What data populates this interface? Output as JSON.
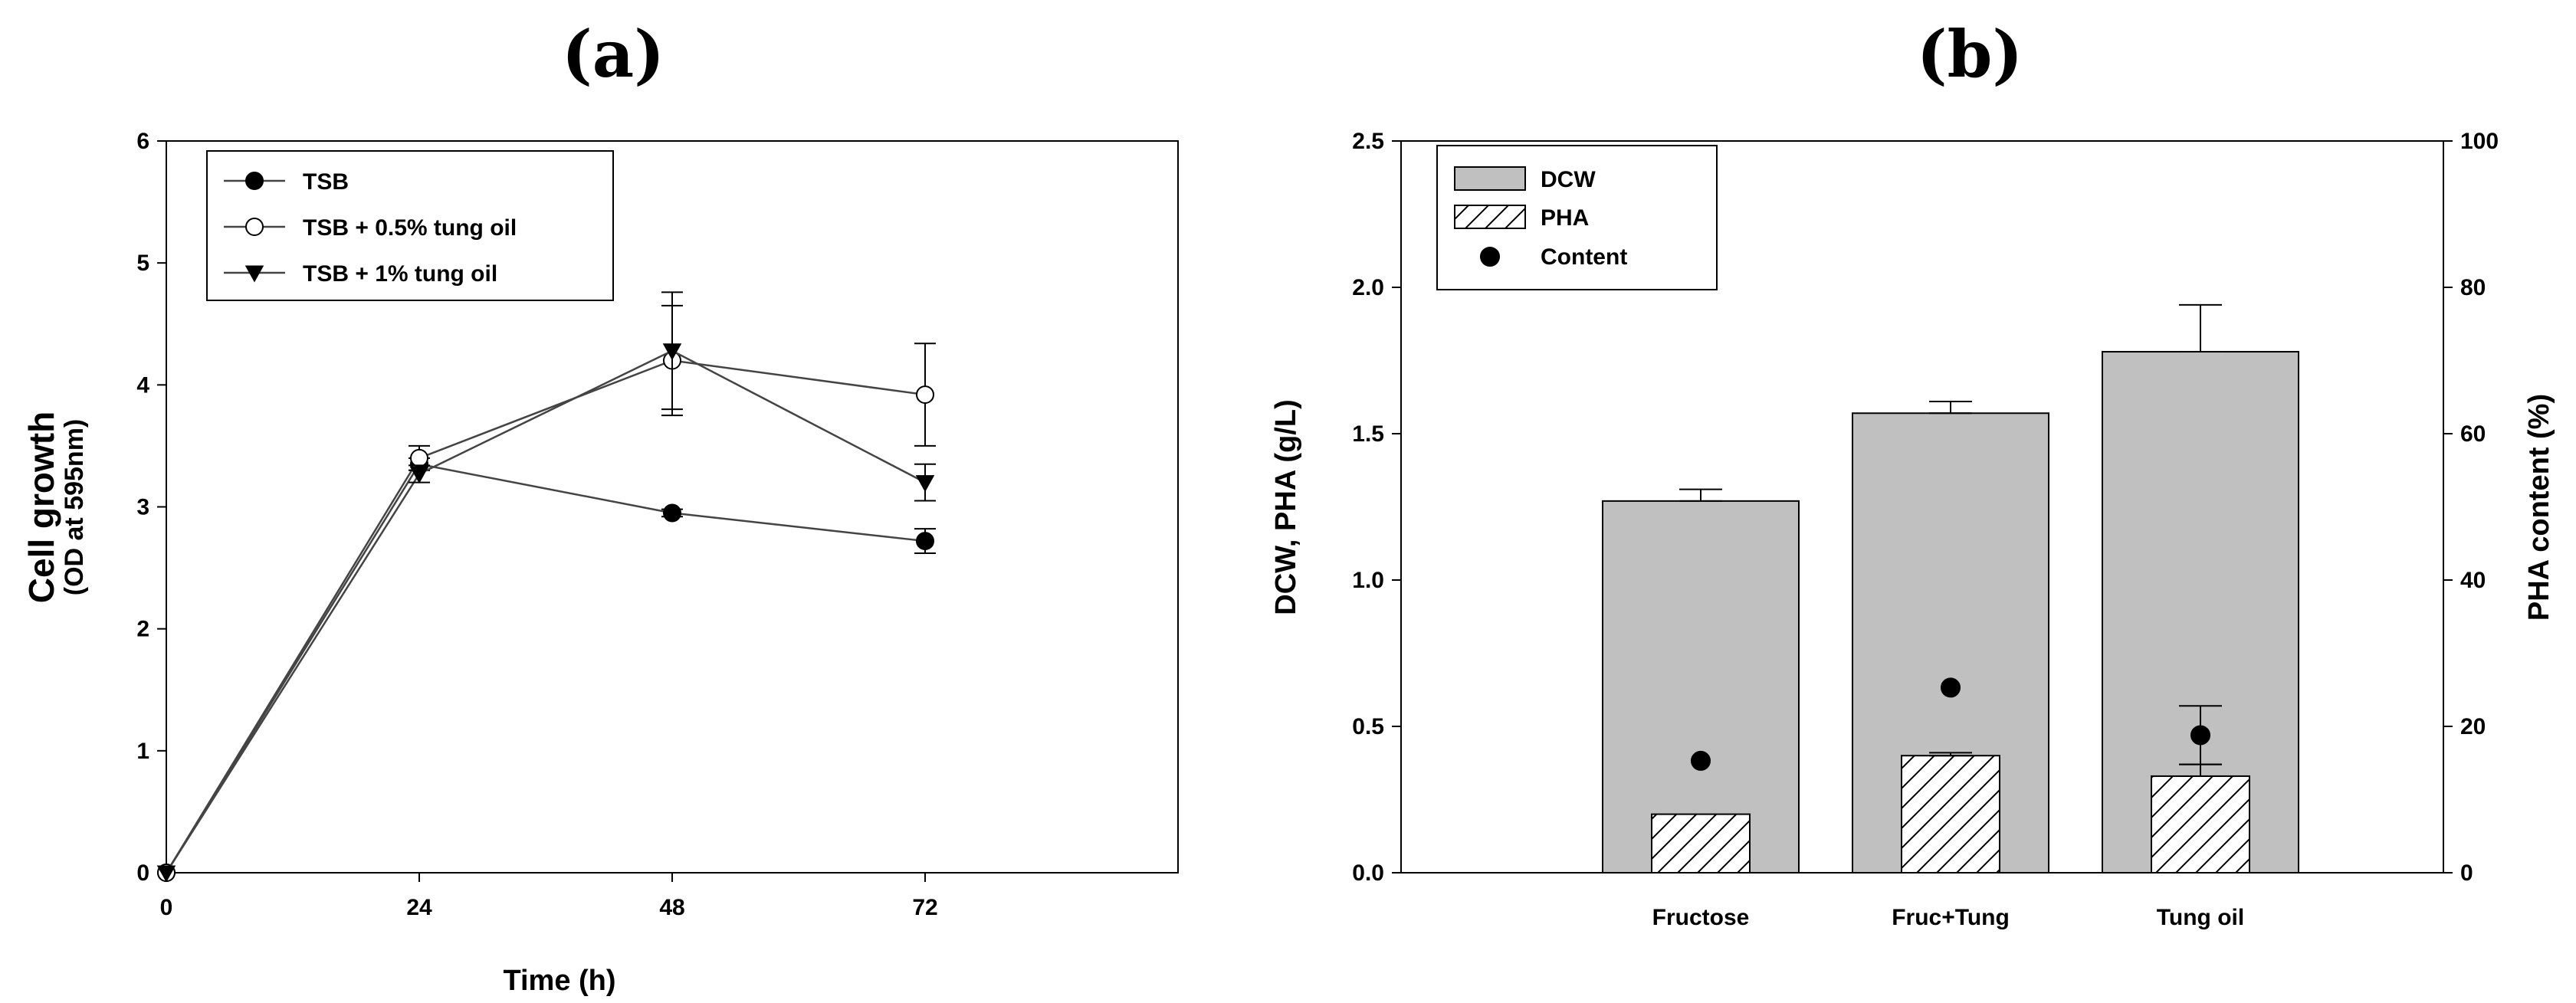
{
  "chart_data": [
    {
      "panel": "(a)",
      "type": "line",
      "xlabel": "Time (h)",
      "ylabel": "Cell growth",
      "ylabel_sub": "(OD at 595nm)",
      "x": [
        0,
        24,
        48,
        72
      ],
      "xticks": [
        "0",
        "24",
        "48",
        "72"
      ],
      "xlim": [
        0,
        96
      ],
      "ylim": [
        0,
        6
      ],
      "yticks": [
        "0",
        "1",
        "2",
        "3",
        "4",
        "5",
        "6"
      ],
      "grid": false,
      "legend": "top-left",
      "series": [
        {
          "name": "TSB",
          "marker": "filled-circle",
          "values": [
            0,
            3.35,
            2.95,
            2.72
          ],
          "errors": [
            0,
            0.05,
            0.03,
            0.1
          ]
        },
        {
          "name": "TSB + 0.5% tung oil",
          "marker": "open-circle",
          "values": [
            0,
            3.4,
            4.2,
            3.92
          ],
          "errors": [
            0,
            0.1,
            0.45,
            0.42
          ]
        },
        {
          "name": "TSB + 1% tung oil",
          "marker": "filled-triangle-down",
          "values": [
            0,
            3.27,
            4.28,
            3.2
          ],
          "errors": [
            0,
            0.07,
            0.48,
            0.15
          ]
        }
      ]
    },
    {
      "panel": "(b)",
      "type": "bar",
      "categories": [
        "Fructose",
        "Fruc+Tung",
        "Tung oil"
      ],
      "ylabel": "DCW, PHA (g/L)",
      "ylim": [
        0,
        2.5
      ],
      "yticks": [
        "0.0",
        "0.5",
        "1.0",
        "1.5",
        "2.0",
        "2.5"
      ],
      "y2label": "PHA content (%)",
      "y2lim": [
        0,
        100
      ],
      "y2ticks": [
        "0",
        "20",
        "40",
        "60",
        "80",
        "100"
      ],
      "grid": false,
      "legend": "top-left",
      "series": [
        {
          "name": "DCW",
          "style": "gray-bar",
          "axis": "left",
          "values": [
            1.27,
            1.57,
            1.78
          ],
          "errors": [
            0.04,
            0.04,
            0.16
          ]
        },
        {
          "name": "PHA",
          "style": "hatched-bar",
          "axis": "left",
          "values": [
            0.2,
            0.4,
            0.33
          ],
          "errors": [
            0,
            0.01,
            0.04
          ]
        },
        {
          "name": "Content",
          "style": "filled-circle",
          "axis": "right",
          "values": [
            15.3,
            25.3,
            18.8
          ],
          "errors": [
            0,
            0,
            4
          ]
        }
      ]
    }
  ]
}
